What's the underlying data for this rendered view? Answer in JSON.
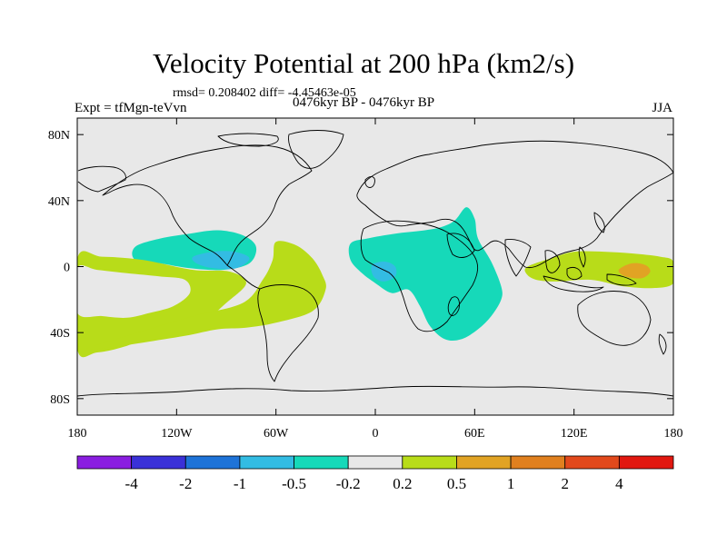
{
  "title": "Velocity Potential at 200 hPa (km2/s)",
  "stats": "rmsd= 0.208402 diff= -4.45463e-05",
  "left_label": "Expt = tfMgn-teVvn",
  "center_label": "0476kyr BP - 0476kyr BP",
  "right_label": "JJA",
  "map": {
    "projection": "cylindrical-equidistant",
    "lon_range": [
      -180,
      180
    ],
    "lat_range": [
      -90,
      90
    ],
    "lat_ticks": [
      {
        "value": 80,
        "label": "80N"
      },
      {
        "value": 40,
        "label": "40N"
      },
      {
        "value": 0,
        "label": "0"
      },
      {
        "value": -40,
        "label": "40S"
      },
      {
        "value": -80,
        "label": "80S"
      }
    ],
    "lon_ticks": [
      {
        "value": -180,
        "label": "180"
      },
      {
        "value": -120,
        "label": "120W"
      },
      {
        "value": -60,
        "label": "60W"
      },
      {
        "value": 0,
        "label": "0"
      },
      {
        "value": 60,
        "label": "60E"
      },
      {
        "value": 120,
        "label": "120E"
      },
      {
        "value": 180,
        "label": "180"
      }
    ],
    "background_color": "#e8e8e8",
    "regions": [
      {
        "name": "pacific-negative-region",
        "level": -0.2,
        "color": "#16d9b9",
        "points": [
          [
            -145,
            12
          ],
          [
            -130,
            17
          ],
          [
            -112,
            20
          ],
          [
            -95,
            22
          ],
          [
            -80,
            19
          ],
          [
            -72,
            12
          ],
          [
            -76,
            2
          ],
          [
            -92,
            -2
          ],
          [
            -112,
            -1
          ],
          [
            -130,
            2
          ],
          [
            -145,
            4
          ]
        ]
      },
      {
        "name": "central-america-negative-core",
        "level": -0.5,
        "color": "#33bce3",
        "points": [
          [
            -110,
            6
          ],
          [
            -98,
            9
          ],
          [
            -85,
            9
          ],
          [
            -76,
            5
          ],
          [
            -84,
            -1
          ],
          [
            -98,
            -1
          ],
          [
            -108,
            2
          ]
        ]
      },
      {
        "name": "south-pacific-positive-band",
        "level": 0.2,
        "color": "#b8dc19",
        "points": [
          [
            -180,
            5
          ],
          [
            -165,
            6
          ],
          [
            -140,
            4
          ],
          [
            -110,
            -2
          ],
          [
            -88,
            -3
          ],
          [
            -78,
            -10
          ],
          [
            -90,
            -22
          ],
          [
            -108,
            -36
          ],
          [
            -132,
            -40
          ],
          [
            -150,
            -48
          ],
          [
            -168,
            -52
          ],
          [
            -180,
            -50
          ]
        ]
      },
      {
        "name": "south-pacific-gap",
        "level": 0,
        "color": "#e8e8e8",
        "points": [
          [
            -180,
            -1
          ],
          [
            -168,
            -2
          ],
          [
            -150,
            -4
          ],
          [
            -130,
            -6
          ],
          [
            -115,
            -8
          ],
          [
            -112,
            -16
          ],
          [
            -122,
            -24
          ],
          [
            -136,
            -28
          ],
          [
            -150,
            -31
          ],
          [
            -165,
            -30
          ],
          [
            -180,
            -28
          ]
        ]
      },
      {
        "name": "south-america-positive-region",
        "level": 0.2,
        "color": "#b8dc19",
        "points": [
          [
            -60,
            15
          ],
          [
            -48,
            13
          ],
          [
            -38,
            5
          ],
          [
            -32,
            -5
          ],
          [
            -30,
            -14
          ],
          [
            -38,
            -27
          ],
          [
            -60,
            -34
          ],
          [
            -78,
            -37
          ],
          [
            -95,
            -38
          ],
          [
            -115,
            -42
          ],
          [
            -140,
            -46
          ],
          [
            -160,
            -49
          ],
          [
            -175,
            -50
          ],
          [
            -150,
            -42
          ],
          [
            -110,
            -30
          ],
          [
            -80,
            -22
          ],
          [
            -68,
            -8
          ],
          [
            -62,
            4
          ]
        ]
      },
      {
        "name": "africa-indian-negative-region",
        "level": -0.2,
        "color": "#16d9b9",
        "points": [
          [
            -15,
            14
          ],
          [
            -5,
            17
          ],
          [
            12,
            20
          ],
          [
            30,
            22
          ],
          [
            40,
            24
          ],
          [
            48,
            28
          ],
          [
            55,
            36
          ],
          [
            60,
            29
          ],
          [
            62,
            17
          ],
          [
            70,
            3
          ],
          [
            76,
            -12
          ],
          [
            76,
            -20
          ],
          [
            70,
            -30
          ],
          [
            62,
            -38
          ],
          [
            52,
            -44
          ],
          [
            42,
            -44
          ],
          [
            33,
            -36
          ],
          [
            27,
            -24
          ],
          [
            20,
            -14
          ],
          [
            10,
            -16
          ],
          [
            0,
            -10
          ],
          [
            -8,
            -4
          ],
          [
            -15,
            4
          ]
        ]
      },
      {
        "name": "atlantic-negative-core",
        "level": -0.5,
        "color": "#33bce3",
        "points": [
          [
            -2,
            1
          ],
          [
            6,
            3
          ],
          [
            12,
            0
          ],
          [
            12,
            -6
          ],
          [
            5,
            -9
          ],
          [
            -1,
            -6
          ]
        ]
      },
      {
        "name": "west-pacific-positive-region",
        "level": 0.2,
        "color": "#b8dc19",
        "points": [
          [
            92,
            0
          ],
          [
            106,
            5
          ],
          [
            120,
            9
          ],
          [
            138,
            9
          ],
          [
            155,
            8
          ],
          [
            172,
            6
          ],
          [
            180,
            3
          ],
          [
            180,
            -10
          ],
          [
            168,
            -13
          ],
          [
            150,
            -12
          ],
          [
            130,
            -8
          ],
          [
            110,
            -9
          ],
          [
            97,
            -8
          ],
          [
            91,
            -4
          ]
        ]
      },
      {
        "name": "west-pacific-positive-core",
        "level": 0.5,
        "color": "#e1a324",
        "points": [
          [
            147,
            -2
          ],
          [
            155,
            2
          ],
          [
            163,
            1
          ],
          [
            166,
            -3
          ],
          [
            161,
            -7
          ],
          [
            151,
            -6
          ]
        ]
      }
    ]
  },
  "colorbar": {
    "colors": [
      "#8a1de0",
      "#3a31d8",
      "#1e73d8",
      "#33bce3",
      "#16d9b9",
      "#e8e8e8",
      "#b8dc19",
      "#e1a324",
      "#e0801f",
      "#e2491c",
      "#e11810"
    ],
    "labels": [
      "-4",
      "-2",
      "-1",
      "-0.5",
      "-0.2",
      "0.2",
      "0.5",
      "1",
      "2",
      "4"
    ]
  }
}
